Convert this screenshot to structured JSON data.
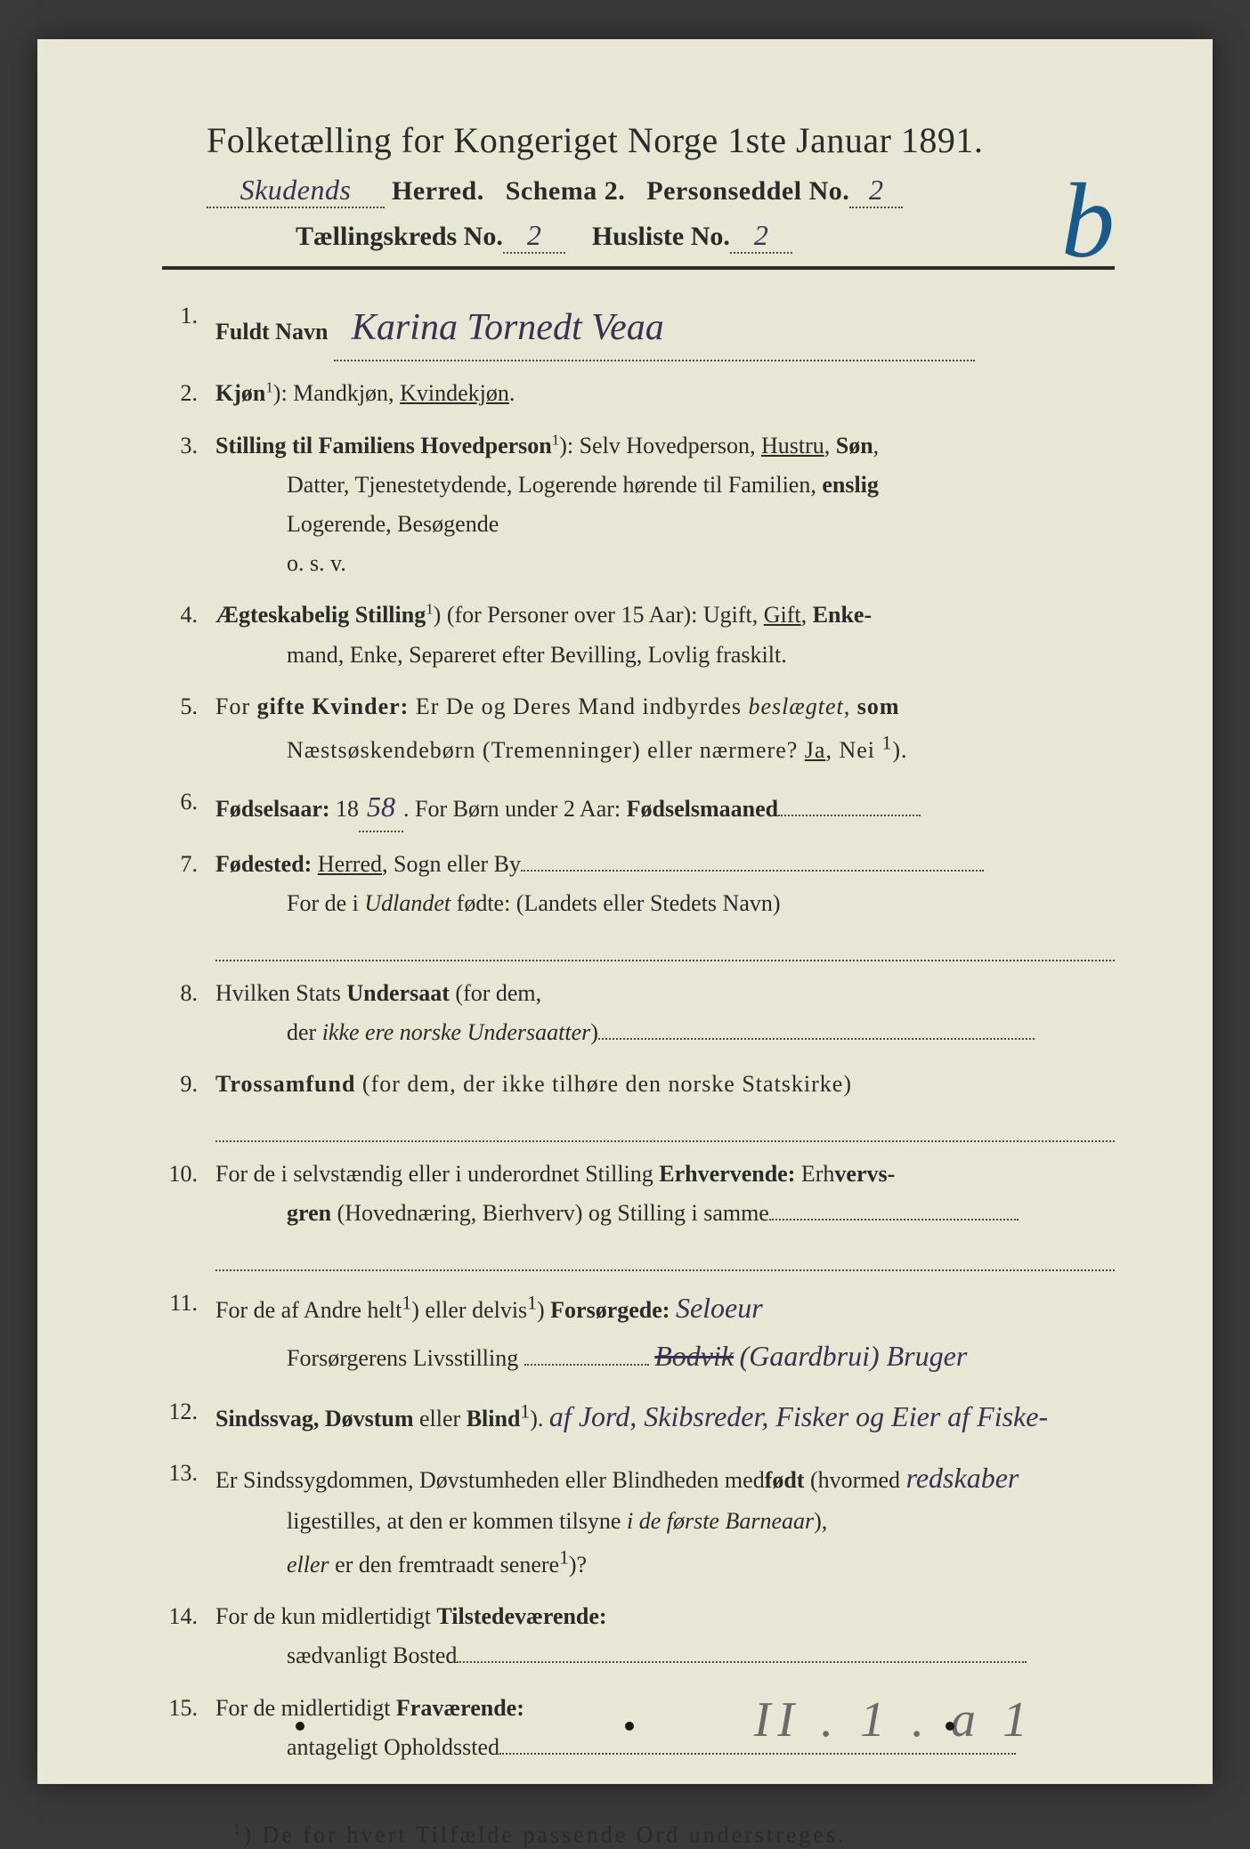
{
  "colors": {
    "page_bg": "#e8e6d4",
    "outer_bg": "#3a3a3a",
    "print_text": "#2a2a28",
    "handwriting": "#3a3050",
    "blue_ink": "#1a5a8a",
    "dotted": "#4a4a42",
    "pencil": "#6a6a6a"
  },
  "header": {
    "title": "Folketælling for Kongeriget Norge 1ste Januar 1891.",
    "herred_hw": "Skudends",
    "herred_label": "Herred.",
    "schema": "Schema 2.",
    "personseddel_label": "Personseddel No.",
    "personseddel_hw": "2",
    "taellingskreds_label": "Tællingskreds No.",
    "taellingskreds_hw": "2",
    "husliste_label": "Husliste No.",
    "husliste_hw": "2",
    "annotation_b": "b"
  },
  "items": [
    {
      "num": "1.",
      "label": "Fuldt Navn",
      "hw": "Karina Tornedt Veaa"
    },
    {
      "num": "2.",
      "label": "Kjøn",
      "sup": "1",
      "text": "): Mandkjøn, ",
      "underlined": "Kvindekjøn",
      "tail": "."
    },
    {
      "num": "3.",
      "label": "Stilling til Familiens Hovedperson",
      "sup": "1",
      "body_lines": [
        "): Selv Hovedperson, <u>Hustru</u>, <b>Søn</b>,",
        "Datter, Tjenestetydende, Logerende hørende til Familien, <b>enslig</b>",
        "Logerende, Besøgende",
        "o. s. v."
      ]
    },
    {
      "num": "4.",
      "label": "Ægteskabelig Stilling",
      "sup": "1",
      "body_lines": [
        ") (for Personer over 15 Aar): Ugift, <u>Gift</u>, <b>Enke-</b>",
        "mand, Enke, Separeret efter Bevilling, Lovlig fraskilt."
      ]
    },
    {
      "num": "5.",
      "body_lines": [
        "For <b>gifte Kvinder:</b> Er De og Deres Mand indbyrdes <i>beslægtet</i>, <b>som</b>",
        "Næstsøskendebørn (Tremenninger) eller nærmere?  <u>Ja</u>, Nei <sup>1</sup>)."
      ]
    },
    {
      "num": "6.",
      "label": "Fødselsaar:",
      "prefix": " 18",
      "hw": "58",
      "tail": ".   For Børn under 2 Aar: <b>Fødselsmaaned</b>"
    },
    {
      "num": "7.",
      "label": "Fødested:",
      "body_lines": [
        " <u>Herred</u>, Sogn eller By",
        "For de i <i>Udlandet</i> fødte: (Landets eller Stedets Navn)"
      ],
      "dotted_after": true
    },
    {
      "num": "8.",
      "body_lines": [
        "Hvilken Stats <b>Undersaat</b> (for dem,",
        "der <i>ikke ere norske Undersaatter</i>)"
      ]
    },
    {
      "num": "9.",
      "body_lines": [
        "<b>Trossamfund</b>  (for dem, der ikke tilhøre  den  norske  Statskirke)"
      ],
      "dotted_after": true
    },
    {
      "num": "10.",
      "body_lines": [
        "For de i selvstændig eller i underordnet Stilling <b>Erhvervende:</b> Erh<b>vervs-</b>",
        "<b>gren</b> (Hovednæring, Bierhverv) og Stilling i samme"
      ],
      "dotted_after": true
    },
    {
      "num": "11.",
      "body_lines": [
        "For de af Andre helt<sup>1</sup>) eller delvis<sup>1</sup>) <b>Forsørgede:</b>    <span class='hw'>Seloeur</span>",
        "Forsørgerens Livsstilling <span class='dotted-line' style='width:140px'></span> <span class='hw' style='text-decoration:line-through'>Bodvik</span> <span class='hw'>(Gaardbrui) Bruger</span>"
      ]
    },
    {
      "num": "12.",
      "body_lines": [
        "<b>Sindssvag, Døvstum</b> eller <b>Blind</b><sup>1</sup>). <span class='hw'>af Jord, Skibsreder, Fisker og Eier af Fiske-</span>"
      ]
    },
    {
      "num": "13.",
      "body_lines": [
        "Er Sindssygdommen, Døvstumheden eller Blindheden med<b>født</b> (hvormed <span class='hw'>redskaber</span>",
        "ligestilles, at den er kommen tilsyne <i>i de første Barneaar</i>),",
        "<i>eller</i> er den fremtraadt senere<sup>1</sup>)?"
      ]
    },
    {
      "num": "14.",
      "body_lines": [
        "For de kun midlertidigt <b>Tilstedeværende:</b>",
        "sædvanligt Bosted"
      ]
    },
    {
      "num": "15.",
      "body_lines": [
        "For de midlertidigt <b>Fraværende:</b>",
        "antageligt Opholdssted"
      ]
    }
  ],
  "footnote": {
    "sup": "1",
    "text": ") De for hvert Tilfælde passende Ord understreges."
  },
  "bottom_annotation": "II . 1 . a 1"
}
